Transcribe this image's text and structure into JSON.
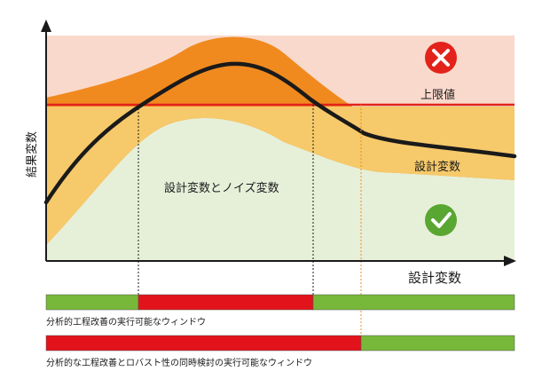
{
  "labels": {
    "y_axis": "結果変数",
    "x_axis": "設計変数",
    "upper_limit": "上限値",
    "band_label": "設計変数",
    "noise_label": "設計変数とノイズ変数",
    "window1_caption": "分析的工程改善の実行可能なウィンドウ",
    "window2_caption": "分析的な工程改善とロバスト性の同時検討の実行可能なウィンドウ"
  },
  "icons": {
    "fail": "x-circle-icon",
    "pass": "check-circle-icon"
  },
  "colors": {
    "fail_zone": "#f9d9cc",
    "pass_zone": "#e6f0d9",
    "noise_band": "#f08a1f",
    "design_band": "#f6c96a",
    "limit_line": "#e3231b",
    "fail_icon": "#e3231b",
    "pass_icon": "#5aa632",
    "window_green": "#77b83a",
    "window_red": "#e3131b"
  }
}
